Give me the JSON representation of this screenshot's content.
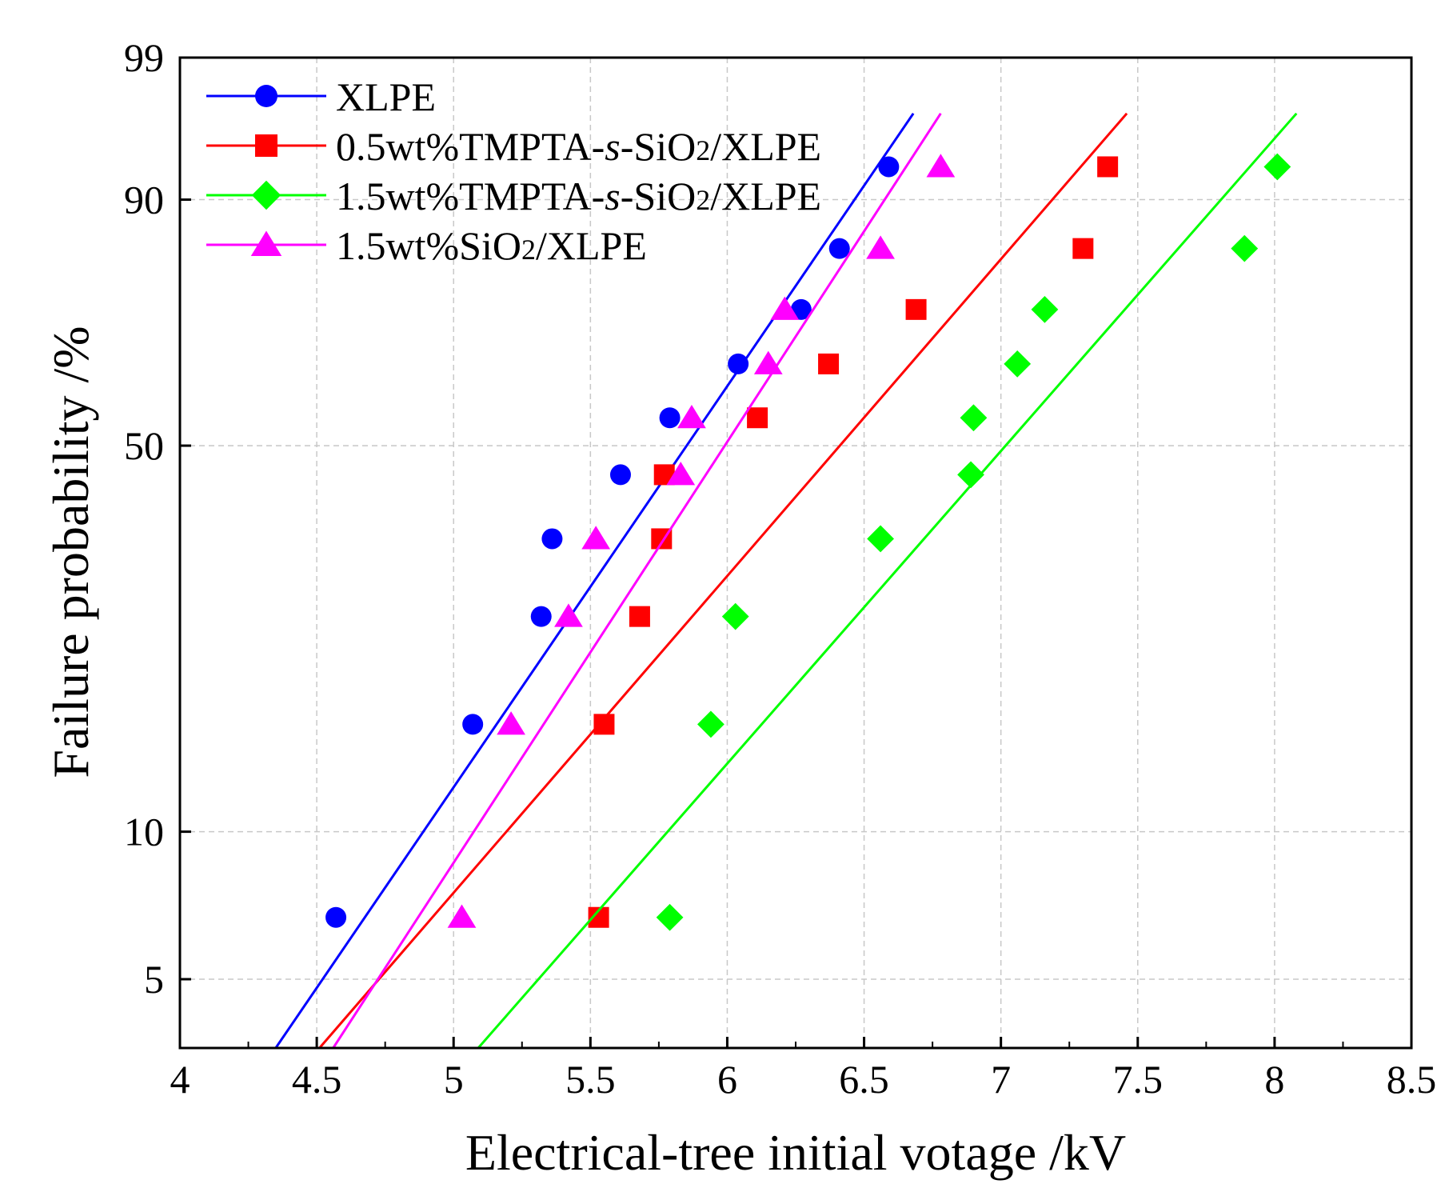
{
  "chart_data": {
    "type": "scatter",
    "title": "",
    "xlabel": "Electrical-tree initial votage /kV",
    "ylabel": "Failure probability /%",
    "xlim": [
      4,
      8.5
    ],
    "ylim": [
      3.6,
      99
    ],
    "y_scale": "weibull",
    "x_ticks": [
      "4",
      "4.5",
      "5",
      "5.5",
      "6",
      "6.5",
      "7",
      "7.5",
      "8",
      "8.5"
    ],
    "y_ticks": [
      "5",
      "10",
      "50",
      "90",
      "99"
    ],
    "grid": true,
    "legend_position": "top-left",
    "series": [
      {
        "name": "XLPE",
        "name_parts": {
          "pre": "XLPE",
          "italic": "",
          "mid": "",
          "sub": "",
          "post": ""
        },
        "color": "#0000ff",
        "marker": "circle",
        "x": [
          4.57,
          5.07,
          5.32,
          5.36,
          5.61,
          5.79,
          6.04,
          6.27,
          6.41,
          6.59
        ],
        "y": [
          6.7,
          16.3,
          26,
          35.6,
          45.2,
          54.8,
          64.4,
          74,
          83.7,
          93.3
        ],
        "fit": {
          "x": [
            4.35,
            6.68
          ],
          "y": [
            3.6,
            97
          ]
        }
      },
      {
        "name": "0.5wt%TMPTA-s-SiO2/XLPE",
        "name_parts": {
          "pre": "0.5wt%TMPTA-",
          "italic": "s",
          "mid": "-SiO",
          "sub": "2",
          "post": "/XLPE"
        },
        "color": "#ff0000",
        "marker": "square",
        "x": [
          5.53,
          5.55,
          5.68,
          5.76,
          5.77,
          6.11,
          6.37,
          6.69,
          7.3,
          7.39
        ],
        "y": [
          6.7,
          16.3,
          26,
          35.6,
          45.2,
          54.8,
          64.4,
          74,
          83.7,
          93.3
        ],
        "fit": {
          "x": [
            4.51,
            7.46
          ],
          "y": [
            3.6,
            97
          ]
        }
      },
      {
        "name": "1.5wt%TMPTA-s-SiO2/XLPE",
        "name_parts": {
          "pre": "1.5wt%TMPTA-",
          "italic": "s",
          "mid": "-SiO",
          "sub": "2",
          "post": "/XLPE"
        },
        "color": "#00ff00",
        "marker": "diamond",
        "x": [
          5.79,
          5.94,
          6.03,
          6.56,
          6.89,
          6.9,
          7.06,
          7.16,
          7.89,
          8.01
        ],
        "y": [
          6.7,
          16.3,
          26,
          35.6,
          45.2,
          54.8,
          64.4,
          74,
          83.7,
          93.3
        ],
        "fit": {
          "x": [
            5.09,
            8.08
          ],
          "y": [
            3.6,
            97
          ]
        }
      },
      {
        "name": "1.5wt%SiO2/XLPE",
        "name_parts": {
          "pre": "1.5wt%SiO",
          "italic": "",
          "mid": "",
          "sub": "2",
          "post": "/XLPE"
        },
        "color": "#ff00ff",
        "marker": "triangle",
        "x": [
          5.03,
          5.21,
          5.42,
          5.52,
          5.83,
          5.87,
          6.15,
          6.21,
          6.56,
          6.78
        ],
        "y": [
          6.7,
          16.3,
          26,
          35.6,
          45.2,
          54.8,
          64.4,
          74,
          83.7,
          93.3
        ],
        "fit": {
          "x": [
            4.56,
            6.78
          ],
          "y": [
            3.6,
            97
          ]
        }
      }
    ]
  }
}
